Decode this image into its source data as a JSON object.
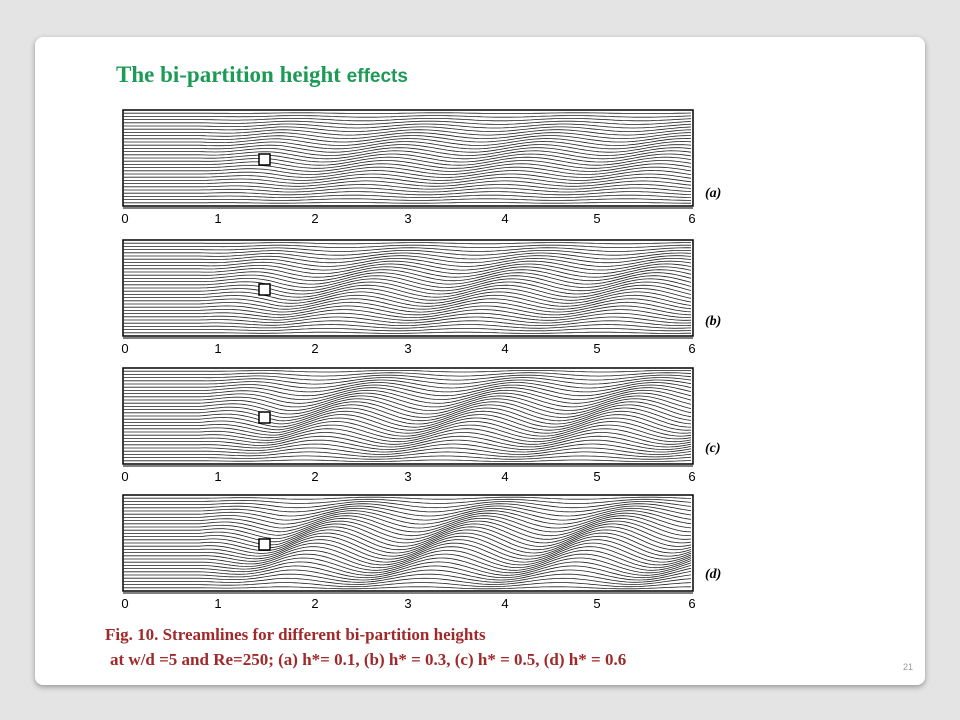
{
  "title": {
    "main": "The bi-partition height",
    "tail": "effects"
  },
  "panels": [
    {
      "label": "(a)",
      "ticks": [
        "0",
        "1",
        "2",
        "3",
        "4",
        "5",
        "6"
      ]
    },
    {
      "label": "(b)",
      "ticks": [
        "0",
        "1",
        "2",
        "3",
        "4",
        "5",
        "6"
      ]
    },
    {
      "label": "(c)",
      "ticks": [
        "0",
        "1",
        "2",
        "3",
        "4",
        "5",
        "6"
      ]
    },
    {
      "label": "(d)",
      "ticks": [
        "0",
        "1",
        "2",
        "3",
        "4",
        "5",
        "6"
      ]
    }
  ],
  "caption": {
    "line1": "Fig. 10. Streamlines for different bi-partition heights",
    "line2": "at w/d =5 and Re=250; (a) h*= 0.1, (b) h* = 0.3, (c) h* = 0.5, (d) h* = 0.6"
  },
  "page_number": "21"
}
